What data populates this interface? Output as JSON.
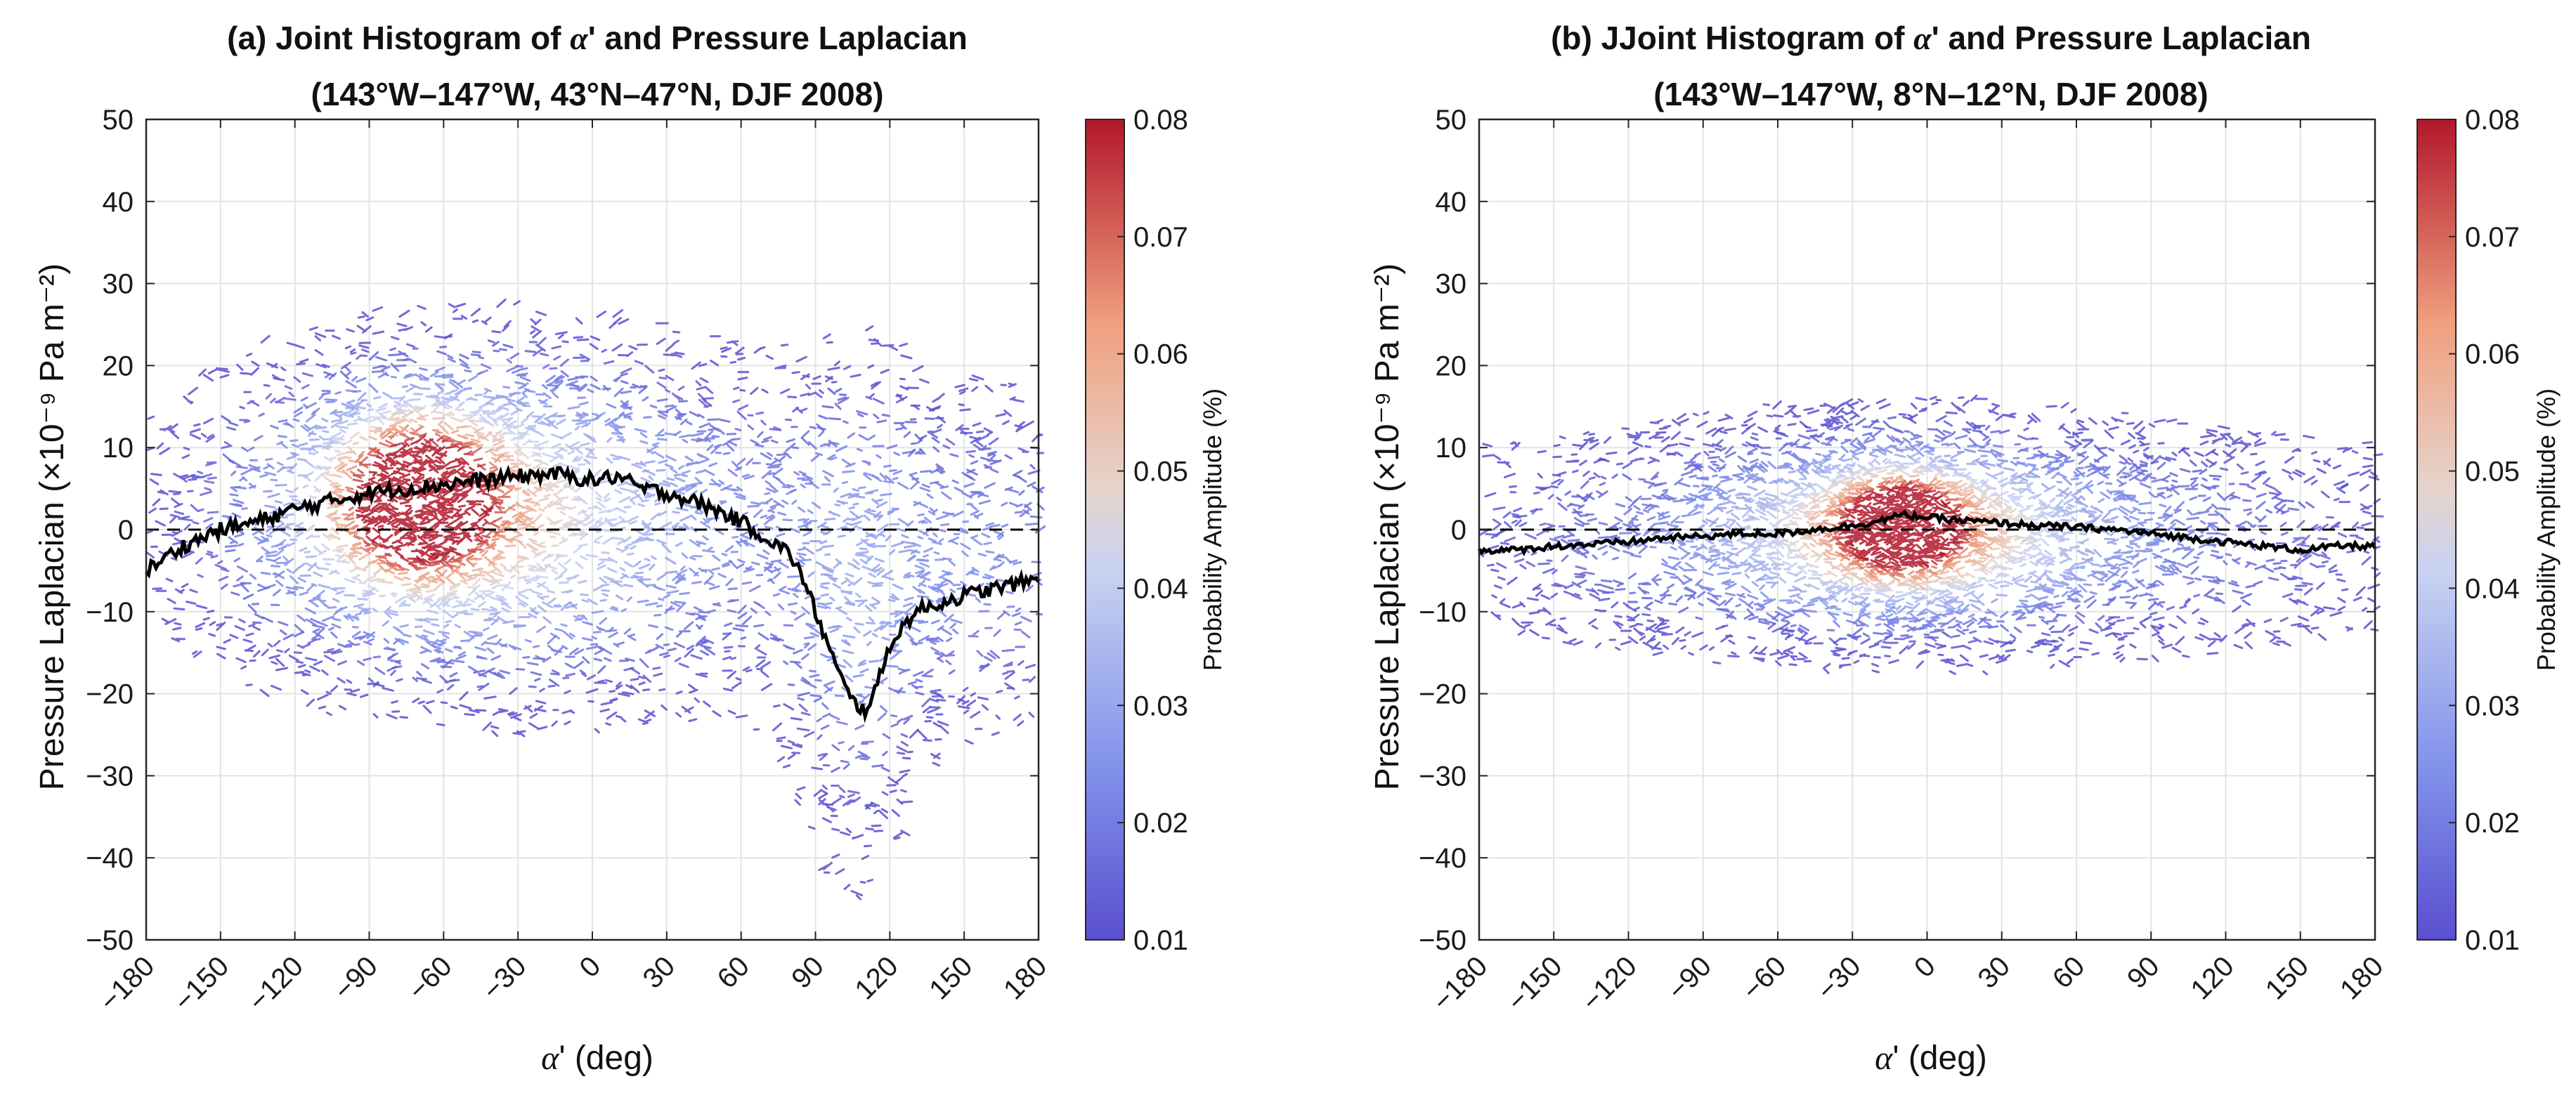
{
  "colors": {
    "low": "#5a4fcf",
    "mid": "#dddddd",
    "high": "#b2182b",
    "mean_line": "#000000",
    "zero_line": "#000000"
  },
  "chart_data": [
    {
      "type": "heatmap",
      "title_prefix": "(a)  Joint Histogram of ",
      "title_greek": "α",
      "title_suffix": "' and Pressure Laplacian",
      "subtitle": "(143°W–147°W, 43°N–47°N, DJF 2008)",
      "xlabel_greek": "α",
      "xlabel_rest": "' (deg)",
      "ylabel": "Pressure Laplacian (×10⁻⁹  Pa m⁻²)",
      "xlim": [
        -180,
        180
      ],
      "ylim": [
        -50,
        50
      ],
      "xticks": [
        "−180",
        "−150",
        "−120",
        "−90",
        "−60",
        "−30",
        "0",
        "30",
        "60",
        "90",
        "120",
        "150",
        "180"
      ],
      "yticks": [
        "50",
        "40",
        "30",
        "20",
        "10",
        "0",
        "−10",
        "−20",
        "−30",
        "−40",
        "−50"
      ],
      "grid": true,
      "zero_line": "dashed at y = 0",
      "colorbar": {
        "label": "Probability Amplitude (%)",
        "ticks": [
          "0.08",
          "0.07",
          "0.06",
          "0.05",
          "0.04",
          "0.03",
          "0.02",
          "0.01"
        ],
        "range": [
          0.01,
          0.08
        ]
      },
      "blobs": [
        {
          "x": -72,
          "y": 4,
          "sx": 20,
          "sy": 6,
          "amp": 0.072
        },
        {
          "x": -60,
          "y": 3,
          "sx": 55,
          "sy": 11,
          "amp": 0.036
        },
        {
          "x": 0,
          "y": 0,
          "sx": 110,
          "sy": 14,
          "amp": 0.022
        },
        {
          "x": 105,
          "y": -15,
          "sx": 18,
          "sy": 20,
          "amp": 0.017
        },
        {
          "x": 160,
          "y": -5,
          "sx": 30,
          "sy": 12,
          "amp": 0.016
        }
      ],
      "mean_curve": {
        "x": [
          -180,
          -165,
          -150,
          -135,
          -120,
          -105,
          -90,
          -75,
          -60,
          -45,
          -30,
          -15,
          0,
          10,
          20,
          30,
          45,
          60,
          70,
          80,
          85,
          90,
          95,
          100,
          105,
          110,
          115,
          120,
          130,
          140,
          150,
          165,
          180
        ],
        "y": [
          -5,
          -2,
          0,
          1,
          2.5,
          3.5,
          4.5,
          5,
          5.5,
          6,
          6.5,
          6.8,
          6,
          6.5,
          5,
          4.5,
          3,
          1,
          -1,
          -3,
          -6,
          -10,
          -14,
          -18,
          -21,
          -22,
          -19,
          -14,
          -10,
          -9,
          -8,
          -7,
          -6
        ]
      }
    },
    {
      "type": "heatmap",
      "title_prefix": "(b)  JJoint Histogram of ",
      "title_greek": "α",
      "title_suffix": "' and Pressure Laplacian",
      "subtitle": "(143°W–147°W, 8°N–12°N, DJF 2008)",
      "xlabel_greek": "α",
      "xlabel_rest": "' (deg)",
      "ylabel": "Pressure Laplacian (×10⁻⁹  Pa m⁻²)",
      "xlim": [
        -180,
        180
      ],
      "ylim": [
        -50,
        50
      ],
      "xticks": [
        "−180",
        "−150",
        "−120",
        "−90",
        "−60",
        "−30",
        "0",
        "30",
        "60",
        "90",
        "120",
        "150",
        "180"
      ],
      "yticks": [
        "50",
        "40",
        "30",
        "20",
        "10",
        "0",
        "−10",
        "−20",
        "−30",
        "−40",
        "−50"
      ],
      "grid": true,
      "zero_line": "dashed at y = 0",
      "colorbar": {
        "label": "Probability Amplitude (%)",
        "ticks": [
          "0.08",
          "0.07",
          "0.06",
          "0.05",
          "0.04",
          "0.03",
          "0.02",
          "0.01"
        ],
        "range": [
          0.01,
          0.08
        ]
      },
      "blobs": [
        {
          "x": -12,
          "y": 0.5,
          "sx": 15,
          "sy": 3.5,
          "amp": 0.072
        },
        {
          "x": -10,
          "y": 0,
          "sx": 45,
          "sy": 6.5,
          "amp": 0.038
        },
        {
          "x": 0,
          "y": -1,
          "sx": 150,
          "sy": 9,
          "amp": 0.025
        }
      ],
      "mean_curve": {
        "x": [
          -180,
          -165,
          -150,
          -135,
          -120,
          -105,
          -90,
          -75,
          -60,
          -45,
          -30,
          -20,
          -10,
          0,
          10,
          20,
          30,
          45,
          60,
          75,
          90,
          105,
          120,
          135,
          150,
          165,
          180
        ],
        "y": [
          -2.5,
          -2.5,
          -2,
          -1.8,
          -1.5,
          -1,
          -0.8,
          -0.5,
          -0.5,
          0,
          0.5,
          1,
          1.8,
          1.5,
          1.2,
          1,
          0.8,
          0.5,
          0.3,
          0,
          -0.5,
          -1,
          -1.5,
          -2,
          -2.5,
          -2,
          -2
        ]
      }
    }
  ]
}
